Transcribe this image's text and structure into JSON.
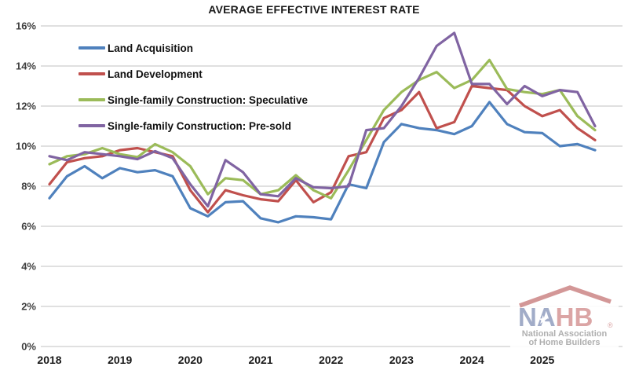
{
  "title": "AVERAGE EFFECTIVE INTEREST RATE",
  "y_axis": {
    "tick_labels": [
      "0%",
      "2%",
      "4%",
      "6%",
      "8%",
      "10%",
      "12%",
      "14%",
      "16%"
    ],
    "min": 0,
    "max": 16,
    "step": 2
  },
  "x_axis": {
    "tick_labels": [
      "2018",
      "2019",
      "2020",
      "2021",
      "2022",
      "2023",
      "2024",
      "2025"
    ]
  },
  "chart_data": {
    "type": "line",
    "title": "AVERAGE EFFECTIVE INTEREST RATE",
    "xlabel": "",
    "ylabel": "",
    "ylim": [
      0,
      16
    ],
    "grid": true,
    "legend_position": "upper-left-inside",
    "x_frequency": "quarterly",
    "x": [
      "2018 Q1",
      "2018 Q2",
      "2018 Q3",
      "2018 Q4",
      "2019 Q1",
      "2019 Q2",
      "2019 Q3",
      "2019 Q4",
      "2020 Q1",
      "2020 Q2",
      "2020 Q3",
      "2020 Q4",
      "2021 Q1",
      "2021 Q2",
      "2021 Q3",
      "2021 Q4",
      "2022 Q1",
      "2022 Q2",
      "2022 Q3",
      "2022 Q4",
      "2023 Q1",
      "2023 Q2",
      "2023 Q3",
      "2023 Q4",
      "2024 Q1",
      "2024 Q2",
      "2024 Q3",
      "2024 Q4",
      "2025 Q1",
      "2025 Q2",
      "2025 Q3",
      "2025 Q4"
    ],
    "series": [
      {
        "name": "Land Acquisition",
        "color": "#4F81BD",
        "values": [
          7.4,
          8.5,
          9.0,
          8.4,
          8.9,
          8.7,
          8.8,
          8.5,
          6.9,
          6.5,
          7.2,
          7.25,
          6.4,
          6.2,
          6.5,
          6.45,
          6.35,
          8.1,
          7.9,
          10.2,
          11.1,
          10.9,
          10.8,
          10.6,
          11.0,
          12.2,
          11.1,
          10.7,
          10.65,
          10.0,
          10.1,
          9.8
        ]
      },
      {
        "name": "Land Development",
        "color": "#C0504D",
        "values": [
          8.1,
          9.2,
          9.4,
          9.5,
          9.8,
          9.9,
          9.7,
          9.5,
          7.8,
          6.7,
          7.8,
          7.55,
          7.35,
          7.25,
          8.3,
          7.2,
          7.7,
          9.5,
          9.7,
          11.4,
          11.8,
          12.7,
          10.9,
          11.2,
          13.0,
          12.9,
          12.8,
          12.0,
          11.5,
          11.8,
          10.9,
          10.3
        ]
      },
      {
        "name": "Single-family Construction: Speculative",
        "color": "#9BBB59",
        "values": [
          9.1,
          9.5,
          9.6,
          9.9,
          9.6,
          9.45,
          10.1,
          9.7,
          9.0,
          7.6,
          8.4,
          8.3,
          7.6,
          7.8,
          8.55,
          7.8,
          7.4,
          8.8,
          10.3,
          11.8,
          12.7,
          13.3,
          13.7,
          12.9,
          13.3,
          14.3,
          12.85,
          12.7,
          12.6,
          12.8,
          11.5,
          10.8
        ]
      },
      {
        "name": "Single-family Construction: Pre-sold",
        "color": "#8064A2",
        "values": [
          9.5,
          9.3,
          9.7,
          9.6,
          9.5,
          9.35,
          9.75,
          9.4,
          8.1,
          7.0,
          9.3,
          8.7,
          7.6,
          7.5,
          8.4,
          7.95,
          7.9,
          8.0,
          10.8,
          10.9,
          12.0,
          13.4,
          15.0,
          15.65,
          13.1,
          13.1,
          12.1,
          13.0,
          12.5,
          12.8,
          12.7,
          11.0
        ]
      }
    ],
    "style": {
      "grid_color": "#c0c0c0",
      "line_width": 3.2,
      "tick_color": "#3f3f3f"
    }
  },
  "logo": {
    "wordmark": "NAHB",
    "wordmark_left": "NA",
    "wordmark_right": "HB",
    "registered_mark": "®",
    "subtext_line1": "National Association",
    "subtext_line2": "of Home Builders",
    "na_color": "#9aa5c4",
    "hb_color": "#d89e9e",
    "roof_color": "#d08f8f",
    "subtext_color": "#a9a9a9"
  }
}
